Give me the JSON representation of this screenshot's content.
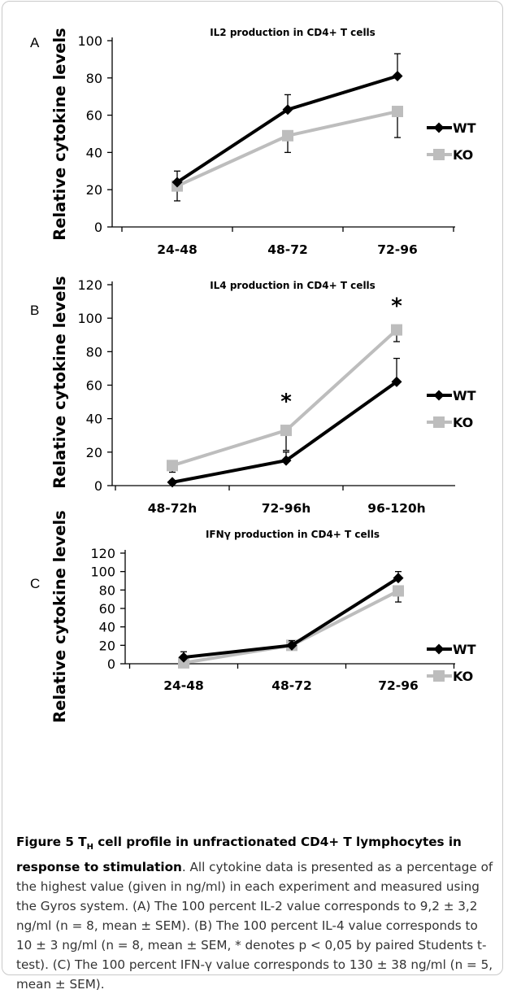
{
  "colors": {
    "WT": "#000000",
    "KO": "#bdbdbd",
    "axis": "#000000",
    "caption": "#333333"
  },
  "icons": {
    "WT": "diamond-marker",
    "KO": "square-marker"
  },
  "chart_data": [
    {
      "panel": "A",
      "type": "line",
      "title": "IL2 production in CD4+ T cells",
      "ylabel": "Relative cytokine levels",
      "xlabel": "",
      "categories": [
        "24-48",
        "48-72",
        "72-96"
      ],
      "ylim": [
        0,
        100
      ],
      "yticks": [
        0,
        20,
        40,
        60,
        80,
        100
      ],
      "legend": "right",
      "grid": false,
      "series": [
        {
          "name": "WT",
          "values": [
            24,
            63,
            81
          ],
          "errors": [
            6,
            8,
            12
          ]
        },
        {
          "name": "KO",
          "values": [
            22,
            49,
            62
          ],
          "errors": [
            8,
            9,
            14
          ]
        }
      ],
      "annotations": []
    },
    {
      "panel": "B",
      "type": "line",
      "title": "IL4 production in CD4+ T cells",
      "ylabel": "Relative cytokine levels",
      "xlabel": "",
      "categories": [
        "48-72h",
        "72-96h",
        "96-120h"
      ],
      "ylim": [
        0,
        120
      ],
      "yticks": [
        0,
        20,
        40,
        60,
        80,
        100,
        120
      ],
      "legend": "right",
      "grid": false,
      "series": [
        {
          "name": "WT",
          "values": [
            2,
            15,
            62
          ],
          "errors": [
            1,
            5,
            14
          ]
        },
        {
          "name": "KO",
          "values": [
            12,
            33,
            93
          ],
          "errors": [
            4,
            12,
            7
          ]
        }
      ],
      "annotations": [
        {
          "text": "*",
          "category": "72-96h",
          "value": 51
        },
        {
          "text": "*",
          "category": "96-120h",
          "value": 108
        }
      ]
    },
    {
      "panel": "C",
      "type": "line",
      "title": "IFNγ production in CD4+ T cells",
      "ylabel": "Relative cytokine levels",
      "xlabel": "",
      "categories": [
        "24-48",
        "48-72",
        "72-96"
      ],
      "ylim": [
        0,
        120
      ],
      "yticks": [
        0,
        20,
        40,
        60,
        80,
        100,
        120
      ],
      "legend": "right",
      "grid": false,
      "series": [
        {
          "name": "WT",
          "values": [
            7,
            20,
            93
          ],
          "errors": [
            6,
            5,
            7
          ]
        },
        {
          "name": "KO",
          "values": [
            1,
            20,
            79
          ],
          "errors": [
            1,
            3,
            12
          ]
        }
      ],
      "annotations": []
    }
  ],
  "caption": {
    "figure_label": "Figure 5 T",
    "figure_sub": "H",
    "figure_title": " cell profile in unfractionated CD4+ T lymphocytes in response to stimulation",
    "body": ". All cytokine data is presented as a percentage of the highest value (given in ng/ml) in each experiment and measured using the Gyros system. (A) The 100 percent IL-2 value corresponds to 9,2 ± 3,2 ng/ml (n = 8, mean ± SEM). (B) The 100 percent IL-4 value corresponds to 10 ± 3 ng/ml (n = 8, mean ± SEM, * denotes p < 0,05 by paired Students t-test). (C) The 100 percent IFN-γ value corresponds to 130 ± 38 ng/ml (n = 5, mean ± SEM)."
  }
}
